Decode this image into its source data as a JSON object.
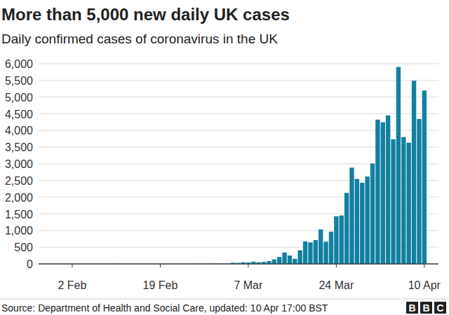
{
  "chart_data": {
    "type": "bar",
    "title": "More than 5,000 new daily UK cases",
    "subtitle": "Daily confirmed cases of coronavirus in the UK",
    "source": "Source: Department of Health and Social Care, updated: 10 Apr 17:00 BST",
    "logo": "BBC",
    "categories": [
      null,
      null,
      null,
      null,
      null,
      null,
      "2 Feb",
      null,
      null,
      null,
      null,
      null,
      null,
      null,
      null,
      null,
      null,
      null,
      null,
      null,
      null,
      null,
      null,
      "19 Feb",
      null,
      null,
      null,
      null,
      null,
      null,
      null,
      null,
      null,
      null,
      null,
      null,
      null,
      null,
      null,
      null,
      "7 Mar",
      null,
      null,
      null,
      null,
      null,
      null,
      null,
      null,
      null,
      null,
      null,
      null,
      null,
      null,
      null,
      null,
      "24 Mar",
      null,
      null,
      null,
      null,
      null,
      null,
      null,
      null,
      null,
      null,
      null,
      null,
      null,
      null,
      null,
      null,
      "10 Apr"
    ],
    "values": [
      0,
      0,
      0,
      0,
      2,
      0,
      0,
      0,
      0,
      0,
      1,
      0,
      0,
      1,
      4,
      1,
      0,
      0,
      0,
      0,
      0,
      0,
      0,
      0,
      0,
      0,
      0,
      0,
      0,
      0,
      4,
      0,
      7,
      3,
      13,
      4,
      11,
      34,
      30,
      48,
      43,
      67,
      48,
      61,
      83,
      134,
      208,
      342,
      251,
      152,
      407,
      676,
      643,
      714,
      1035,
      665,
      967,
      1427,
      1452,
      2129,
      2885,
      2546,
      2433,
      2619,
      3009,
      4324,
      4244,
      4450,
      3735,
      5903,
      3802,
      3634,
      5491,
      4344,
      5195
    ],
    "color": "#1380a1",
    "ylim": [
      0,
      6000
    ],
    "yticks": [
      0,
      500,
      {
        "value": 1000,
        "label": "1,000"
      },
      {
        "value": 1500,
        "label": "1,500"
      },
      {
        "value": 2000,
        "label": "2,000"
      },
      {
        "value": 2500,
        "label": "2,500"
      },
      {
        "value": 3000,
        "label": "3,000"
      },
      {
        "value": 3500,
        "label": "3,500"
      },
      {
        "value": 4000,
        "label": "4,000"
      },
      {
        "value": 4500,
        "label": "4,500"
      },
      {
        "value": 5000,
        "label": "5,000"
      },
      {
        "value": 5500,
        "label": "5,500"
      },
      {
        "value": 6000,
        "label": "6,000"
      }
    ],
    "grid": true
  }
}
